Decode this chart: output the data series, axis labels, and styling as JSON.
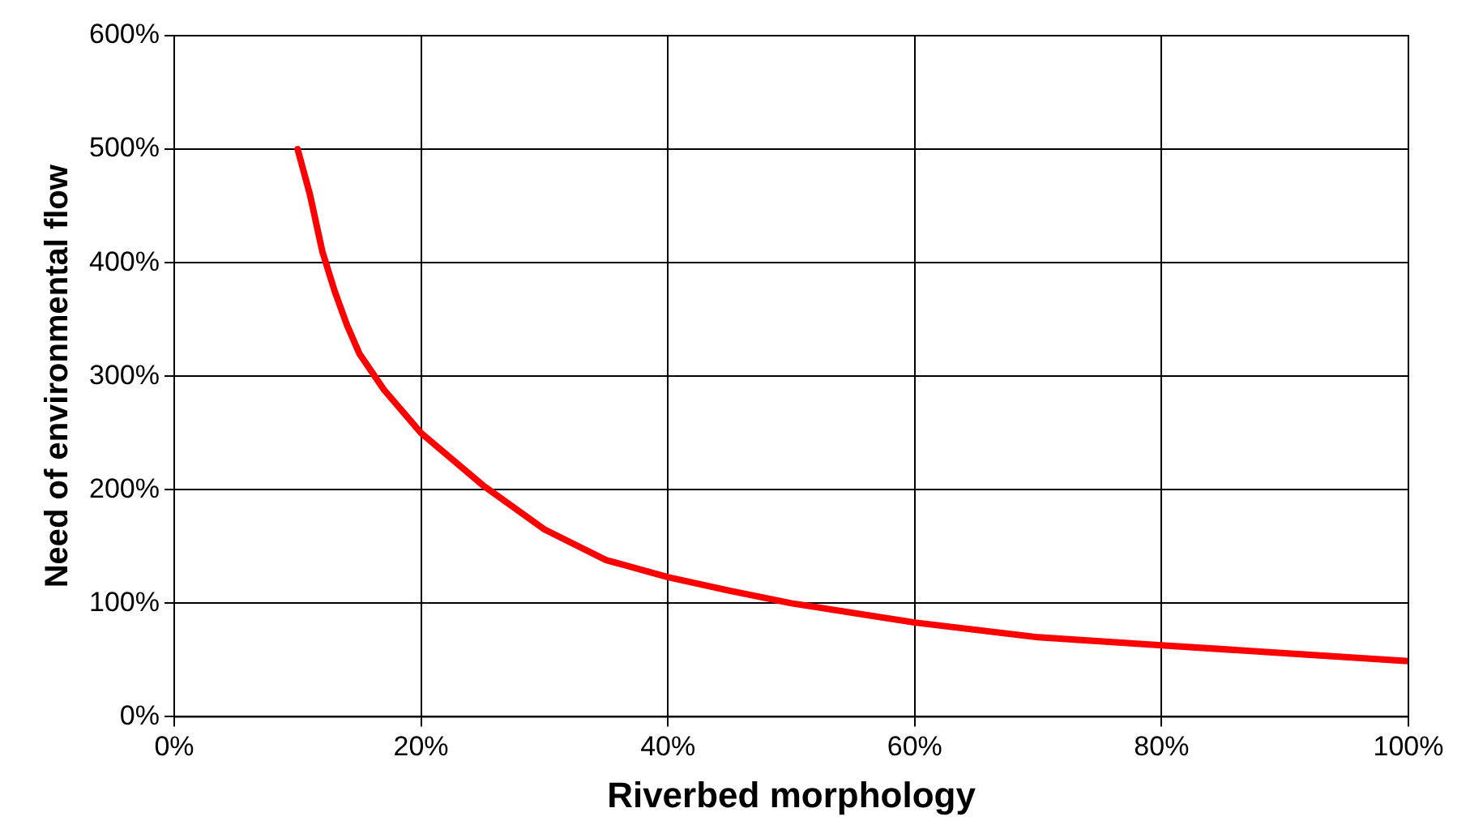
{
  "chart_data": {
    "type": "line",
    "xlabel": "Riverbed morphology",
    "ylabel": "Need of environmental flow",
    "series": [
      {
        "color": "#ff0000",
        "x": [
          10,
          11,
          12,
          13,
          14,
          15,
          17,
          20,
          25,
          30,
          35,
          40,
          45,
          50,
          60,
          70,
          80,
          90,
          100
        ],
        "values": [
          500,
          460,
          410,
          375,
          345,
          320,
          288,
          250,
          204,
          165,
          138,
          123,
          111,
          100,
          83,
          70,
          63,
          56,
          49
        ]
      }
    ],
    "xlim": [
      0,
      100
    ],
    "xticks": [
      {
        "value": 0,
        "label": "0%"
      },
      {
        "value": 20,
        "label": "20%"
      },
      {
        "value": 40,
        "label": "40%"
      },
      {
        "value": 60,
        "label": "60%"
      },
      {
        "value": 80,
        "label": "80%"
      },
      {
        "value": 100,
        "label": "100%"
      }
    ],
    "ylim": [
      0,
      600
    ],
    "yticks": [
      {
        "value": 0,
        "label": "0%"
      },
      {
        "value": 100,
        "label": "100%"
      },
      {
        "value": 200,
        "label": "200%"
      },
      {
        "value": 300,
        "label": "300%"
      },
      {
        "value": 400,
        "label": "400%"
      },
      {
        "value": 500,
        "label": "500%"
      },
      {
        "value": 600,
        "label": "600%"
      }
    ],
    "grid": true,
    "legend": false,
    "marker": "none",
    "line_style": "solid"
  }
}
